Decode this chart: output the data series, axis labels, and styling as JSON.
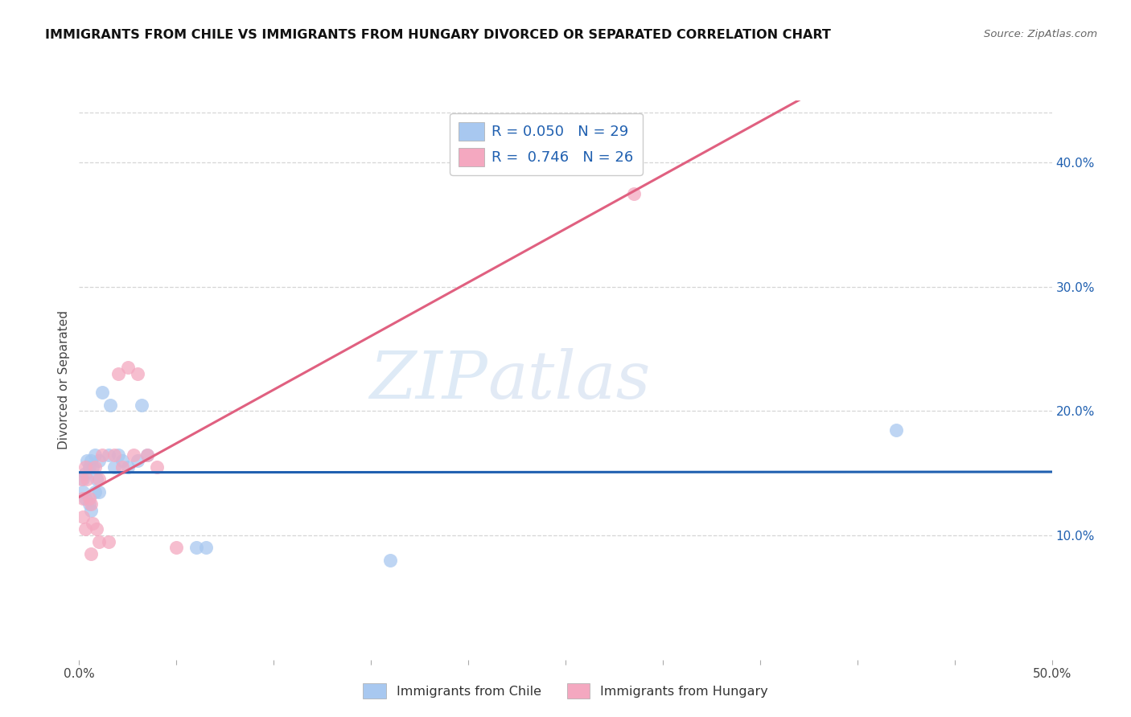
{
  "title": "IMMIGRANTS FROM CHILE VS IMMIGRANTS FROM HUNGARY DIVORCED OR SEPARATED CORRELATION CHART",
  "source": "Source: ZipAtlas.com",
  "ylabel": "Divorced or Separated",
  "watermark_part1": "ZIP",
  "watermark_part2": "atlas",
  "xlim": [
    0.0,
    0.5
  ],
  "ylim": [
    0.0,
    0.45
  ],
  "xtick_positions": [
    0.0,
    0.05,
    0.1,
    0.15,
    0.2,
    0.25,
    0.3,
    0.35,
    0.4,
    0.45,
    0.5
  ],
  "xtick_labels": [
    "0.0%",
    "",
    "",
    "",
    "",
    "",
    "",
    "",
    "",
    "",
    "50.0%"
  ],
  "right_ytick_positions": [
    0.1,
    0.2,
    0.3,
    0.4
  ],
  "right_ytick_labels": [
    "10.0%",
    "20.0%",
    "30.0%",
    "40.0%"
  ],
  "chile_color": "#a8c8f0",
  "hungary_color": "#f4a8c0",
  "chile_line_color": "#2060b0",
  "hungary_line_color": "#e06080",
  "chile_R": 0.05,
  "chile_N": 29,
  "hungary_R": 0.746,
  "hungary_N": 26,
  "chile_scatter_x": [
    0.002,
    0.002,
    0.003,
    0.003,
    0.004,
    0.005,
    0.005,
    0.006,
    0.006,
    0.007,
    0.008,
    0.008,
    0.009,
    0.01,
    0.01,
    0.012,
    0.015,
    0.016,
    0.018,
    0.02,
    0.022,
    0.025,
    0.03,
    0.032,
    0.035,
    0.06,
    0.065,
    0.16,
    0.42
  ],
  "chile_scatter_y": [
    0.145,
    0.135,
    0.15,
    0.13,
    0.16,
    0.155,
    0.125,
    0.16,
    0.12,
    0.155,
    0.165,
    0.135,
    0.145,
    0.16,
    0.135,
    0.215,
    0.165,
    0.205,
    0.155,
    0.165,
    0.16,
    0.155,
    0.16,
    0.205,
    0.165,
    0.09,
    0.09,
    0.08,
    0.185
  ],
  "hungary_scatter_x": [
    0.001,
    0.002,
    0.002,
    0.003,
    0.003,
    0.004,
    0.005,
    0.006,
    0.006,
    0.007,
    0.008,
    0.009,
    0.01,
    0.01,
    0.012,
    0.015,
    0.018,
    0.02,
    0.022,
    0.025,
    0.028,
    0.03,
    0.035,
    0.04,
    0.05,
    0.285
  ],
  "hungary_scatter_y": [
    0.145,
    0.13,
    0.115,
    0.155,
    0.105,
    0.145,
    0.13,
    0.125,
    0.085,
    0.11,
    0.155,
    0.105,
    0.145,
    0.095,
    0.165,
    0.095,
    0.165,
    0.23,
    0.155,
    0.235,
    0.165,
    0.23,
    0.165,
    0.155,
    0.09,
    0.375
  ],
  "background_color": "#ffffff",
  "grid_color": "#cccccc"
}
